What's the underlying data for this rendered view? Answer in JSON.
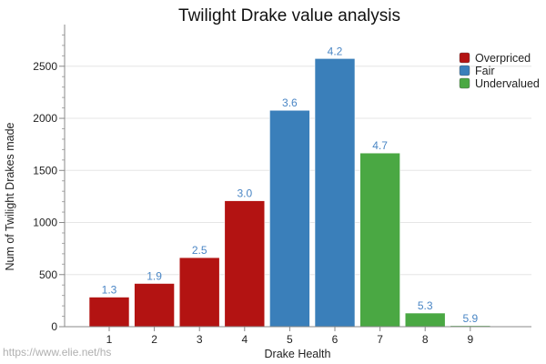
{
  "chart_data": {
    "type": "bar",
    "title": "Twilight Drake value analysis",
    "xlabel": "Drake Health",
    "ylabel": "Num of Twilight Drakes made",
    "categories": [
      "1",
      "2",
      "3",
      "4",
      "5",
      "6",
      "7",
      "8",
      "9"
    ],
    "values": [
      284,
      415,
      663,
      1209,
      2077,
      2574,
      1667,
      131,
      10
    ],
    "data_labels": [
      "1.3",
      "1.9",
      "2.5",
      "3.0",
      "3.6",
      "4.2",
      "4.7",
      "5.3",
      "5.9"
    ],
    "bar_groups": [
      "Overpriced",
      "Overpriced",
      "Overpriced",
      "Overpriced",
      "Fair",
      "Fair",
      "Undervalued",
      "Undervalued",
      "Undervalued"
    ],
    "ylim": [
      0,
      2900
    ],
    "yticks": [
      0,
      500,
      1000,
      1500,
      2000,
      2500
    ],
    "grid": true,
    "legend": {
      "placement": "top-right",
      "entries": [
        {
          "name": "Overpriced",
          "color": "#b31312"
        },
        {
          "name": "Fair",
          "color": "#3a7fba"
        },
        {
          "name": "Undervalued",
          "color": "#4aa843"
        }
      ]
    },
    "label_color": "#4a86c5"
  },
  "watermark": "https://www.elie.net/hs"
}
